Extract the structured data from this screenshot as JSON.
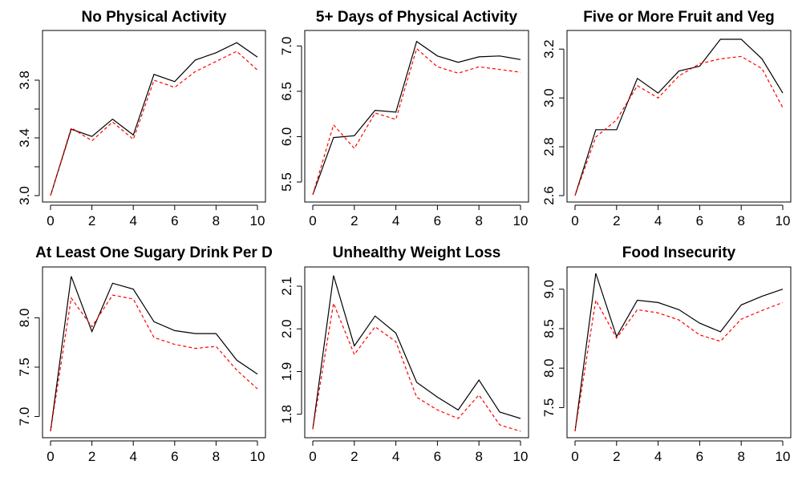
{
  "colors": {
    "series_solid": "#000000",
    "series_dashed": "#ff0000"
  },
  "chart_data": [
    {
      "type": "line",
      "title": "No Physical Activity",
      "x": [
        0,
        1,
        2,
        3,
        4,
        5,
        6,
        7,
        8,
        9,
        10
      ],
      "xlim": [
        0,
        10
      ],
      "xticks": [
        0,
        2,
        4,
        6,
        8,
        10
      ],
      "ylim": [
        3.0,
        4.1
      ],
      "yticks": [
        3.0,
        3.2,
        3.4,
        3.6,
        3.8
      ],
      "ytick_labels": [
        "3.0",
        "",
        "3.4",
        "",
        "3.8"
      ],
      "series": [
        {
          "style": "solid",
          "values": [
            3.0,
            3.46,
            3.41,
            3.53,
            3.42,
            3.84,
            3.79,
            3.94,
            3.99,
            4.06,
            3.96
          ]
        },
        {
          "style": "dashed",
          "values": [
            3.0,
            3.47,
            3.38,
            3.51,
            3.39,
            3.8,
            3.75,
            3.86,
            3.93,
            4.0,
            3.87
          ]
        }
      ]
    },
    {
      "type": "line",
      "title": "5+ Days of Physical Activity",
      "x": [
        0,
        1,
        2,
        3,
        4,
        5,
        6,
        7,
        8,
        9,
        10
      ],
      "xlim": [
        0,
        10
      ],
      "xticks": [
        0,
        2,
        4,
        6,
        8,
        10
      ],
      "ylim": [
        5.35,
        7.1
      ],
      "yticks": [
        5.5,
        6.0,
        6.5,
        7.0
      ],
      "ytick_labels": [
        "5.5",
        "6.0",
        "6.5",
        "7.0"
      ],
      "series": [
        {
          "style": "solid",
          "values": [
            5.36,
            5.99,
            6.01,
            6.29,
            6.27,
            7.05,
            6.89,
            6.82,
            6.88,
            6.89,
            6.85
          ]
        },
        {
          "style": "dashed",
          "values": [
            5.36,
            6.13,
            5.87,
            6.26,
            6.19,
            6.97,
            6.77,
            6.7,
            6.77,
            6.74,
            6.71
          ]
        }
      ]
    },
    {
      "type": "line",
      "title": "Five or More Fruit and Veg",
      "x": [
        0,
        1,
        2,
        3,
        4,
        5,
        6,
        7,
        8,
        9,
        10
      ],
      "xlim": [
        0,
        10
      ],
      "xticks": [
        0,
        2,
        4,
        6,
        8,
        10
      ],
      "ylim": [
        2.6,
        3.25
      ],
      "yticks": [
        2.6,
        2.8,
        3.0,
        3.2
      ],
      "ytick_labels": [
        "2.6",
        "2.8",
        "3.0",
        "3.2"
      ],
      "series": [
        {
          "style": "solid",
          "values": [
            2.6,
            2.87,
            2.87,
            3.08,
            3.02,
            3.11,
            3.13,
            3.24,
            3.24,
            3.16,
            3.02
          ]
        },
        {
          "style": "dashed",
          "values": [
            2.6,
            2.84,
            2.91,
            3.05,
            3.0,
            3.09,
            3.14,
            3.16,
            3.17,
            3.12,
            2.96
          ]
        }
      ]
    },
    {
      "type": "line",
      "title": "At Least One Sugary Drink Per D",
      "x": [
        0,
        1,
        2,
        3,
        4,
        5,
        6,
        7,
        8,
        9,
        10
      ],
      "xlim": [
        0,
        10
      ],
      "xticks": [
        0,
        2,
        4,
        6,
        8,
        10
      ],
      "ylim": [
        6.85,
        8.45
      ],
      "yticks": [
        7.0,
        7.5,
        8.0
      ],
      "ytick_labels": [
        "7.0",
        "7.5",
        "8.0"
      ],
      "series": [
        {
          "style": "solid",
          "values": [
            6.85,
            8.42,
            7.86,
            8.35,
            8.29,
            7.96,
            7.87,
            7.84,
            7.84,
            7.57,
            7.43
          ]
        },
        {
          "style": "dashed",
          "values": [
            6.85,
            8.2,
            7.91,
            8.23,
            8.19,
            7.8,
            7.73,
            7.69,
            7.71,
            7.47,
            7.28
          ]
        }
      ]
    },
    {
      "type": "line",
      "title": "Unhealthy Weight Loss",
      "x": [
        0,
        1,
        2,
        3,
        4,
        5,
        6,
        7,
        8,
        9,
        10
      ],
      "xlim": [
        0,
        10
      ],
      "xticks": [
        0,
        2,
        4,
        6,
        8,
        10
      ],
      "ylim": [
        1.76,
        2.13
      ],
      "yticks": [
        1.8,
        1.9,
        2.0,
        2.1
      ],
      "ytick_labels": [
        "1.8",
        "1.9",
        "2.0",
        "2.1"
      ],
      "series": [
        {
          "style": "solid",
          "values": [
            1.765,
            2.125,
            1.96,
            2.03,
            1.99,
            1.875,
            1.84,
            1.81,
            1.88,
            1.805,
            1.79
          ]
        },
        {
          "style": "dashed",
          "values": [
            1.765,
            2.06,
            1.94,
            2.005,
            1.97,
            1.84,
            1.81,
            1.79,
            1.845,
            1.775,
            1.76
          ]
        }
      ]
    },
    {
      "type": "line",
      "title": "Food Insecurity",
      "x": [
        0,
        1,
        2,
        3,
        4,
        5,
        6,
        7,
        8,
        9,
        10
      ],
      "xlim": [
        0,
        10
      ],
      "xticks": [
        0,
        2,
        4,
        6,
        8,
        10
      ],
      "ylim": [
        7.2,
        9.2
      ],
      "yticks": [
        7.5,
        8.0,
        8.5,
        9.0
      ],
      "ytick_labels": [
        "7.5",
        "8.0",
        "8.5",
        "9.0"
      ],
      "series": [
        {
          "style": "solid",
          "values": [
            7.2,
            9.2,
            8.4,
            8.86,
            8.83,
            8.74,
            8.57,
            8.46,
            8.8,
            8.91,
            9.0
          ]
        },
        {
          "style": "dashed",
          "values": [
            7.2,
            8.86,
            8.38,
            8.74,
            8.7,
            8.61,
            8.42,
            8.34,
            8.62,
            8.73,
            8.83
          ]
        }
      ]
    }
  ]
}
